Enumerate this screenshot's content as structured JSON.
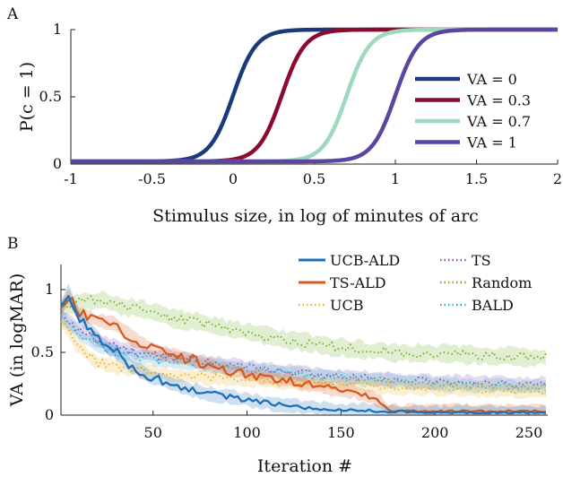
{
  "chart_data": [
    {
      "type": "line",
      "panel_label": "A",
      "xlabel": "Stimulus size, in log of minutes of arc",
      "ylabel": "P(c = 1)",
      "xlim": [
        -1,
        2
      ],
      "ylim": [
        0,
        1
      ],
      "x_ticks": [
        "-1",
        "-0.5",
        "0",
        "0.5",
        "1",
        "1.5",
        "2"
      ],
      "y_ticks": [
        "0",
        "0.5",
        "1"
      ],
      "legend_placement": "right",
      "floor": 0.02,
      "series": [
        {
          "name": "VA = 0",
          "midpoint": 0.0,
          "color": "#1a3a7a"
        },
        {
          "name": "VA = 0.3",
          "midpoint": 0.3,
          "color": "#8b0a2e"
        },
        {
          "name": "VA = 0.7",
          "midpoint": 0.7,
          "color": "#9dd9bd"
        },
        {
          "name": "VA = 1",
          "midpoint": 1.0,
          "color": "#5b45a0"
        }
      ]
    },
    {
      "type": "line",
      "panel_label": "B",
      "xlabel": "Iteration #",
      "ylabel": "VA (in logMAR)",
      "xlim": [
        1,
        260
      ],
      "ylim": [
        0,
        1.2
      ],
      "x_ticks": [
        "50",
        "100",
        "150",
        "200",
        "250"
      ],
      "y_ticks": [
        "0",
        "0.5",
        "1"
      ],
      "legend_placement": "top-right",
      "series": [
        {
          "name": "UCB-ALD",
          "style": "solid",
          "color": "#1f70b8",
          "band": true,
          "x": [
            1,
            5,
            10,
            15,
            20,
            25,
            30,
            40,
            50,
            60,
            70,
            80,
            90,
            100,
            110,
            120,
            130,
            140,
            150,
            160,
            170,
            180,
            200,
            220,
            240,
            260
          ],
          "y": [
            0.85,
            0.98,
            0.8,
            0.72,
            0.62,
            0.55,
            0.5,
            0.38,
            0.3,
            0.25,
            0.2,
            0.17,
            0.15,
            0.12,
            0.1,
            0.08,
            0.06,
            0.05,
            0.04,
            0.04,
            0.03,
            0.03,
            0.02,
            0.02,
            0.02,
            0.02
          ]
        },
        {
          "name": "TS-ALD",
          "style": "solid",
          "color": "#d85a1f",
          "band": true,
          "x": [
            1,
            5,
            10,
            15,
            20,
            25,
            30,
            40,
            50,
            60,
            70,
            80,
            90,
            100,
            110,
            120,
            130,
            140,
            150,
            160,
            170,
            175,
            180,
            200,
            220,
            240,
            260
          ],
          "y": [
            0.85,
            0.95,
            0.82,
            0.78,
            0.75,
            0.74,
            0.72,
            0.6,
            0.52,
            0.48,
            0.44,
            0.4,
            0.36,
            0.33,
            0.3,
            0.28,
            0.25,
            0.22,
            0.2,
            0.18,
            0.12,
            0.04,
            0.03,
            0.03,
            0.03,
            0.03,
            0.03
          ]
        },
        {
          "name": "UCB",
          "style": "dotted",
          "color": "#e8b530",
          "band": true,
          "x": [
            1,
            10,
            20,
            30,
            40,
            50,
            60,
            80,
            100,
            120,
            140,
            160,
            180,
            200,
            220,
            240,
            260
          ],
          "y": [
            0.75,
            0.55,
            0.42,
            0.38,
            0.36,
            0.34,
            0.32,
            0.3,
            0.28,
            0.26,
            0.25,
            0.24,
            0.22,
            0.21,
            0.2,
            0.19,
            0.19
          ]
        },
        {
          "name": "TS",
          "style": "dotted",
          "color": "#8a55b0",
          "band": true,
          "x": [
            1,
            10,
            20,
            30,
            40,
            50,
            60,
            80,
            100,
            120,
            140,
            160,
            180,
            200,
            220,
            240,
            260
          ],
          "y": [
            0.8,
            0.68,
            0.6,
            0.55,
            0.5,
            0.48,
            0.46,
            0.42,
            0.38,
            0.35,
            0.32,
            0.3,
            0.28,
            0.27,
            0.26,
            0.25,
            0.25
          ]
        },
        {
          "name": "Random",
          "style": "dotted",
          "color": "#7ab230",
          "band": true,
          "x": [
            1,
            10,
            20,
            30,
            40,
            50,
            60,
            80,
            100,
            120,
            140,
            160,
            180,
            200,
            220,
            240,
            260
          ],
          "y": [
            0.85,
            0.9,
            0.92,
            0.88,
            0.85,
            0.82,
            0.78,
            0.72,
            0.66,
            0.6,
            0.56,
            0.52,
            0.5,
            0.49,
            0.48,
            0.47,
            0.46
          ]
        },
        {
          "name": "BALD",
          "style": "dotted",
          "color": "#3ab0d8",
          "band": true,
          "x": [
            1,
            10,
            20,
            30,
            40,
            50,
            60,
            80,
            100,
            120,
            140,
            160,
            180,
            200,
            220,
            240,
            260
          ],
          "y": [
            0.78,
            0.65,
            0.55,
            0.5,
            0.47,
            0.45,
            0.43,
            0.4,
            0.37,
            0.34,
            0.31,
            0.29,
            0.27,
            0.25,
            0.24,
            0.23,
            0.22
          ]
        }
      ]
    }
  ]
}
